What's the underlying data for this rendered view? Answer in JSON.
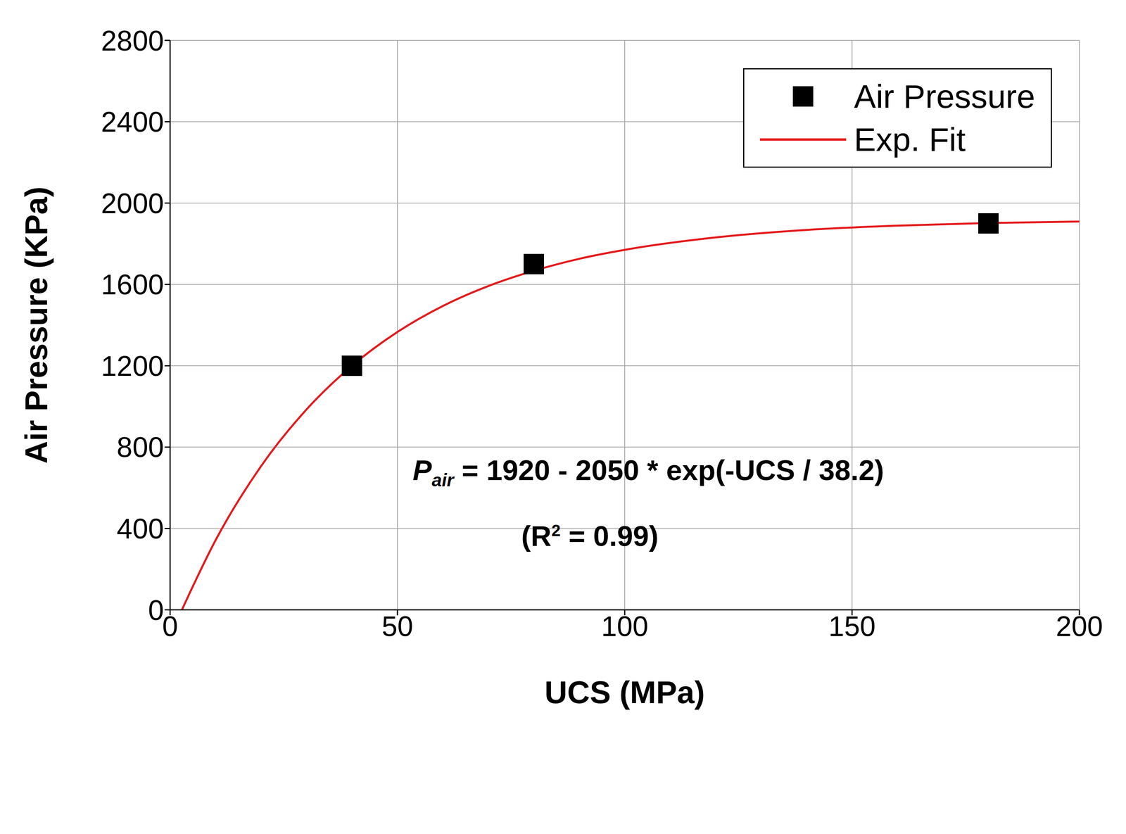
{
  "chart_data": {
    "type": "scatter",
    "x_label": "UCS (MPa)",
    "y_label": "Air Pressure (KPa)",
    "xlim": [
      0,
      200
    ],
    "ylim": [
      0,
      2800
    ],
    "xticks": [
      0,
      50,
      100,
      150,
      200
    ],
    "yticks": [
      0,
      400,
      800,
      1200,
      1600,
      2000,
      2400,
      2800
    ],
    "grid": true,
    "legend": "upper right",
    "series": [
      {
        "name": "Air Pressure",
        "type": "scatter",
        "marker": "square",
        "color": "#000000",
        "x": [
          40,
          80,
          180
        ],
        "values": [
          1200,
          1700,
          1900
        ]
      },
      {
        "name": "Exp. Fit",
        "type": "line",
        "line_style": "solid",
        "color": "#e41a1c",
        "x": [
          2.6,
          10,
          20,
          30,
          40,
          50,
          60,
          70,
          80,
          90,
          100,
          120,
          140,
          160,
          180,
          200
        ],
        "values": [
          0,
          342,
          706,
          985,
          1200,
          1366,
          1494,
          1592,
          1667,
          1726,
          1770,
          1831,
          1868,
          1889,
          1902,
          1909
        ]
      }
    ],
    "annotations": [
      {
        "text": "P",
        "subscript": "air",
        "tail": " = 1920 - 2050 * exp(-UCS / 38.2)"
      },
      {
        "text": "(R",
        "superscript": "2",
        "tail": " = 0.99)"
      }
    ]
  }
}
